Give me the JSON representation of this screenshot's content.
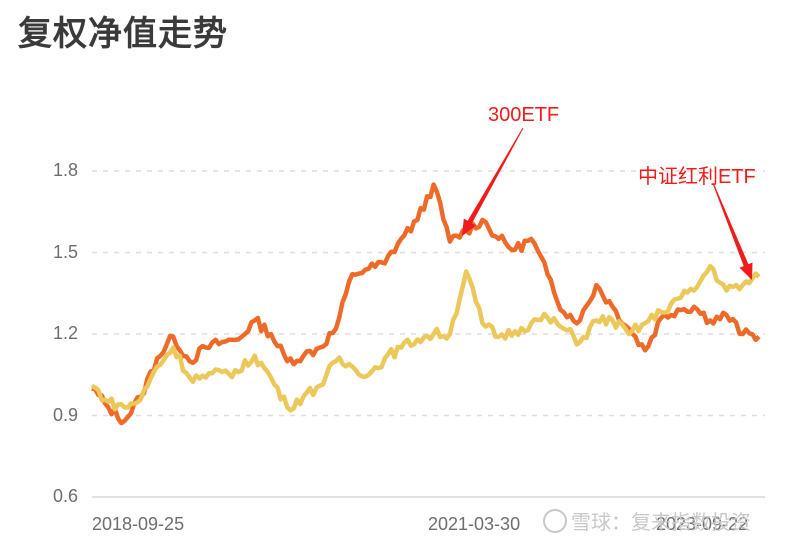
{
  "header": {
    "title": "复权净值走势"
  },
  "watermark": {
    "text": "雪球：复来指数投资",
    "icon": "xueqiu-logo-icon"
  },
  "annotations": [
    {
      "label": "300ETF",
      "target_series": "300ETF"
    },
    {
      "label": "中证红利ETF",
      "target_series": "中证红利ETF"
    }
  ],
  "colors": {
    "series_300etf": "#ee6a28",
    "series_dividend": "#ecc85a",
    "annotation": "#f01c1c",
    "grid": "#dddddd"
  },
  "chart_data": {
    "type": "line",
    "title": "复权净值走势",
    "xlabel": "",
    "ylabel": "",
    "ylim": [
      0.6,
      1.9
    ],
    "yticks": [
      0.6,
      0.9,
      1.2,
      1.5,
      1.8
    ],
    "xtick_labels": [
      "2018-09-25",
      "2021-03-30",
      "2023-09-22"
    ],
    "grid": "horizontal dashed",
    "legend": "none (inline arrow annotations)",
    "x": [
      "2018-09",
      "2018-11",
      "2019-01",
      "2019-02",
      "2019-03",
      "2019-04",
      "2019-05",
      "2019-06",
      "2019-08",
      "2019-10",
      "2019-12",
      "2020-01",
      "2020-02",
      "2020-03",
      "2020-04",
      "2020-06",
      "2020-07",
      "2020-08",
      "2020-10",
      "2020-12",
      "2021-01",
      "2021-02",
      "2021-03",
      "2021-05",
      "2021-07",
      "2021-09",
      "2021-10",
      "2021-12",
      "2022-01",
      "2022-03",
      "2022-04",
      "2022-06",
      "2022-07",
      "2022-09",
      "2022-10",
      "2022-11",
      "2023-01",
      "2023-03",
      "2023-05",
      "2023-07",
      "2023-08",
      "2023-09"
    ],
    "series": [
      {
        "name": "300ETF",
        "values": [
          1.0,
          0.93,
          0.88,
          0.97,
          1.11,
          1.19,
          1.1,
          1.15,
          1.17,
          1.18,
          1.25,
          1.2,
          1.1,
          1.12,
          1.15,
          1.22,
          1.42,
          1.44,
          1.46,
          1.55,
          1.62,
          1.75,
          1.54,
          1.58,
          1.62,
          1.55,
          1.51,
          1.55,
          1.42,
          1.28,
          1.25,
          1.38,
          1.3,
          1.22,
          1.14,
          1.26,
          1.29,
          1.3,
          1.25,
          1.27,
          1.2,
          1.19
        ]
      },
      {
        "name": "中证红利ETF",
        "values": [
          1.01,
          0.95,
          0.93,
          0.96,
          1.08,
          1.15,
          1.04,
          1.04,
          1.06,
          1.06,
          1.12,
          1.04,
          0.93,
          0.97,
          1.01,
          1.1,
          1.08,
          1.05,
          1.11,
          1.15,
          1.18,
          1.2,
          1.2,
          1.43,
          1.24,
          1.19,
          1.21,
          1.24,
          1.26,
          1.22,
          1.17,
          1.25,
          1.25,
          1.2,
          1.24,
          1.28,
          1.33,
          1.36,
          1.45,
          1.36,
          1.38,
          1.41
        ]
      }
    ]
  }
}
